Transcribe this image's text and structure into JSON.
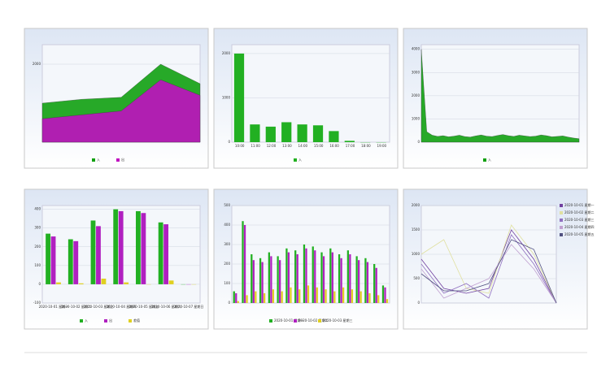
{
  "chart_data": [
    {
      "type": "area",
      "legend": "bottom",
      "categories": [
        null,
        null,
        null,
        null,
        null
      ],
      "ylim": [
        0,
        2500
      ],
      "yticks": [
        2000
      ],
      "series": [
        {
          "name": "入",
          "color": "#11a011",
          "values": [
            1000,
            1100,
            1150,
            2000,
            1500
          ]
        },
        {
          "name": "出",
          "color": "#c010c0",
          "values": [
            600,
            700,
            800,
            1600,
            1200
          ]
        }
      ]
    },
    {
      "type": "bar",
      "legend": "bottom",
      "categories": [
        "10:00",
        "11:00",
        "12:00",
        "13:00",
        "14:00",
        "15:00",
        "16:00",
        "17:00",
        "18:00",
        "19:00"
      ],
      "ylim": [
        0,
        2200
      ],
      "yticks": [
        0,
        1000,
        2000
      ],
      "series": [
        {
          "name": "入",
          "color": "#22b022",
          "values": [
            2000,
            400,
            350,
            450,
            400,
            380,
            250,
            30,
            0,
            0
          ]
        }
      ]
    },
    {
      "type": "area",
      "legend": "bottom",
      "categories": [
        null,
        null,
        null,
        null,
        null,
        null,
        null,
        null,
        null,
        null,
        null,
        null,
        null,
        null,
        null,
        null,
        null,
        null,
        null,
        null,
        null,
        null,
        null,
        null,
        null,
        null,
        null,
        null,
        null,
        null
      ],
      "ylim": [
        0,
        4200
      ],
      "yticks": [
        0,
        1000,
        2000,
        3000,
        4000
      ],
      "series": [
        {
          "name": "入",
          "color": "#11a011",
          "values": [
            4000,
            450,
            300,
            250,
            280,
            230,
            260,
            300,
            240,
            220,
            270,
            310,
            260,
            240,
            290,
            330,
            280,
            250,
            300,
            270,
            240,
            260,
            310,
            280,
            230,
            250,
            270,
            220,
            180,
            150
          ]
        }
      ]
    },
    {
      "type": "bar",
      "legend": "bottom",
      "categories": [
        "2020-10-01 星期一",
        "2020-10-02 星期二",
        "2020-10-03 星期三",
        "2020-10-04 星期四",
        "2020-10-05 星期五",
        "2020-10-06 星期六",
        "2020-10-07 星期日"
      ],
      "ylim": [
        -100,
        420
      ],
      "yticks": [
        -100,
        0,
        100,
        200,
        300,
        400
      ],
      "series": [
        {
          "name": "入",
          "color": "#22b022",
          "values": [
            270,
            240,
            340,
            400,
            390,
            330,
            0
          ]
        },
        {
          "name": "出",
          "color": "#b020c0",
          "values": [
            255,
            230,
            310,
            390,
            380,
            320,
            0
          ]
        },
        {
          "name": "差值",
          "color": "#e0d020",
          "values": [
            10,
            5,
            30,
            10,
            0,
            20,
            0
          ]
        }
      ]
    },
    {
      "type": "bar",
      "legend": "bottom",
      "categories": [
        null,
        null,
        null,
        null,
        null,
        null,
        null,
        null,
        null,
        null,
        null,
        null,
        null,
        null,
        null,
        null,
        null,
        null
      ],
      "ylim": [
        0,
        500
      ],
      "yticks": [
        0,
        100,
        200,
        300,
        400,
        500
      ],
      "series": [
        {
          "name": "2020-10-01 星期一",
          "color": "#22b022",
          "values": [
            60,
            420,
            250,
            230,
            260,
            240,
            280,
            270,
            300,
            290,
            260,
            280,
            250,
            270,
            240,
            230,
            200,
            90
          ]
        },
        {
          "name": "2020-10-02 星期二",
          "color": "#b020c0",
          "values": [
            50,
            400,
            220,
            210,
            240,
            220,
            260,
            250,
            280,
            270,
            240,
            260,
            230,
            250,
            220,
            210,
            180,
            80
          ]
        },
        {
          "name": "2020-10-03 星期三",
          "color": "#e0d020",
          "values": [
            10,
            40,
            60,
            50,
            70,
            60,
            80,
            70,
            90,
            80,
            70,
            60,
            80,
            70,
            60,
            50,
            40,
            20
          ]
        }
      ]
    },
    {
      "type": "line",
      "legend": "right",
      "categories": [
        null,
        null,
        null,
        null,
        null,
        null,
        null
      ],
      "ylim": [
        0,
        2000
      ],
      "yticks": [
        0,
        500,
        1000,
        1500,
        2000
      ],
      "series": [
        {
          "name": "2020-10-01 星期一",
          "color": "#7040a0",
          "values": [
            900,
            300,
            200,
            300,
            1500,
            900,
            0
          ]
        },
        {
          "name": "2020-10-02 星期二",
          "color": "#e0e0a0",
          "values": [
            1000,
            1300,
            300,
            200,
            1600,
            1000,
            0
          ]
        },
        {
          "name": "2020-10-03 星期三",
          "color": "#9070c0",
          "values": [
            800,
            200,
            400,
            100,
            1400,
            800,
            0
          ]
        },
        {
          "name": "2020-10-04 星期四",
          "color": "#c0a0d0",
          "values": [
            700,
            100,
            300,
            500,
            1200,
            700,
            0
          ]
        },
        {
          "name": "2020-10-05 星期五",
          "color": "#505080",
          "values": [
            600,
            250,
            250,
            400,
            1300,
            1100,
            0
          ]
        }
      ]
    }
  ]
}
